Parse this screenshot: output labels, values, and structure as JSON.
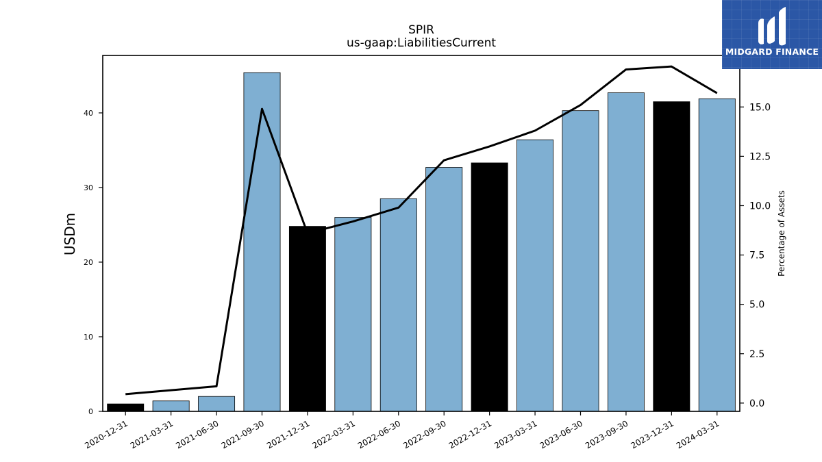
{
  "chart_data": {
    "type": "bar",
    "title": "SPIR",
    "subtitle": "us-gaap:LiabilitiesCurrent",
    "ylabel": "USDm",
    "y2label": "Percentage of Assets",
    "categories": [
      "2020-12-31",
      "2021-03-31",
      "2021-06-30",
      "2021-09-30",
      "2021-12-31",
      "2022-03-31",
      "2022-06-30",
      "2022-09-30",
      "2022-12-31",
      "2023-03-31",
      "2023-06-30",
      "2023-09-30",
      "2023-12-31",
      "2024-03-31"
    ],
    "series": [
      {
        "values": [
          1.0,
          1.4,
          2.0,
          45.4,
          24.8,
          26.0,
          28.5,
          32.7,
          33.3,
          36.4,
          40.3,
          42.7,
          41.5,
          41.9
        ],
        "bar_colors": [
          "#000000",
          "#7fafd2",
          "#7fafd2",
          "#7fafd2",
          "#000000",
          "#7fafd2",
          "#7fafd2",
          "#7fafd2",
          "#000000",
          "#7fafd2",
          "#7fafd2",
          "#7fafd2",
          "#000000",
          "#7fafd2"
        ]
      },
      {
        "axis": "right",
        "type": "line",
        "values": [
          0.45,
          0.65,
          0.85,
          14.9,
          8.6,
          9.2,
          9.9,
          12.3,
          13.0,
          13.8,
          15.1,
          16.9,
          17.05,
          15.7
        ]
      }
    ],
    "ylim": [
      0,
      47.7
    ],
    "yticks": [
      0,
      10,
      20,
      30,
      40
    ],
    "y2lim": [
      -0.42,
      17.61
    ],
    "y2ticks": [
      "0.0",
      "2.5",
      "5.0",
      "7.5",
      "10.0",
      "12.5",
      "15.0"
    ],
    "grid": false,
    "legend": "none"
  },
  "logo": {
    "text": "MIDGARD FINANCE",
    "background": "#2b57a6"
  }
}
